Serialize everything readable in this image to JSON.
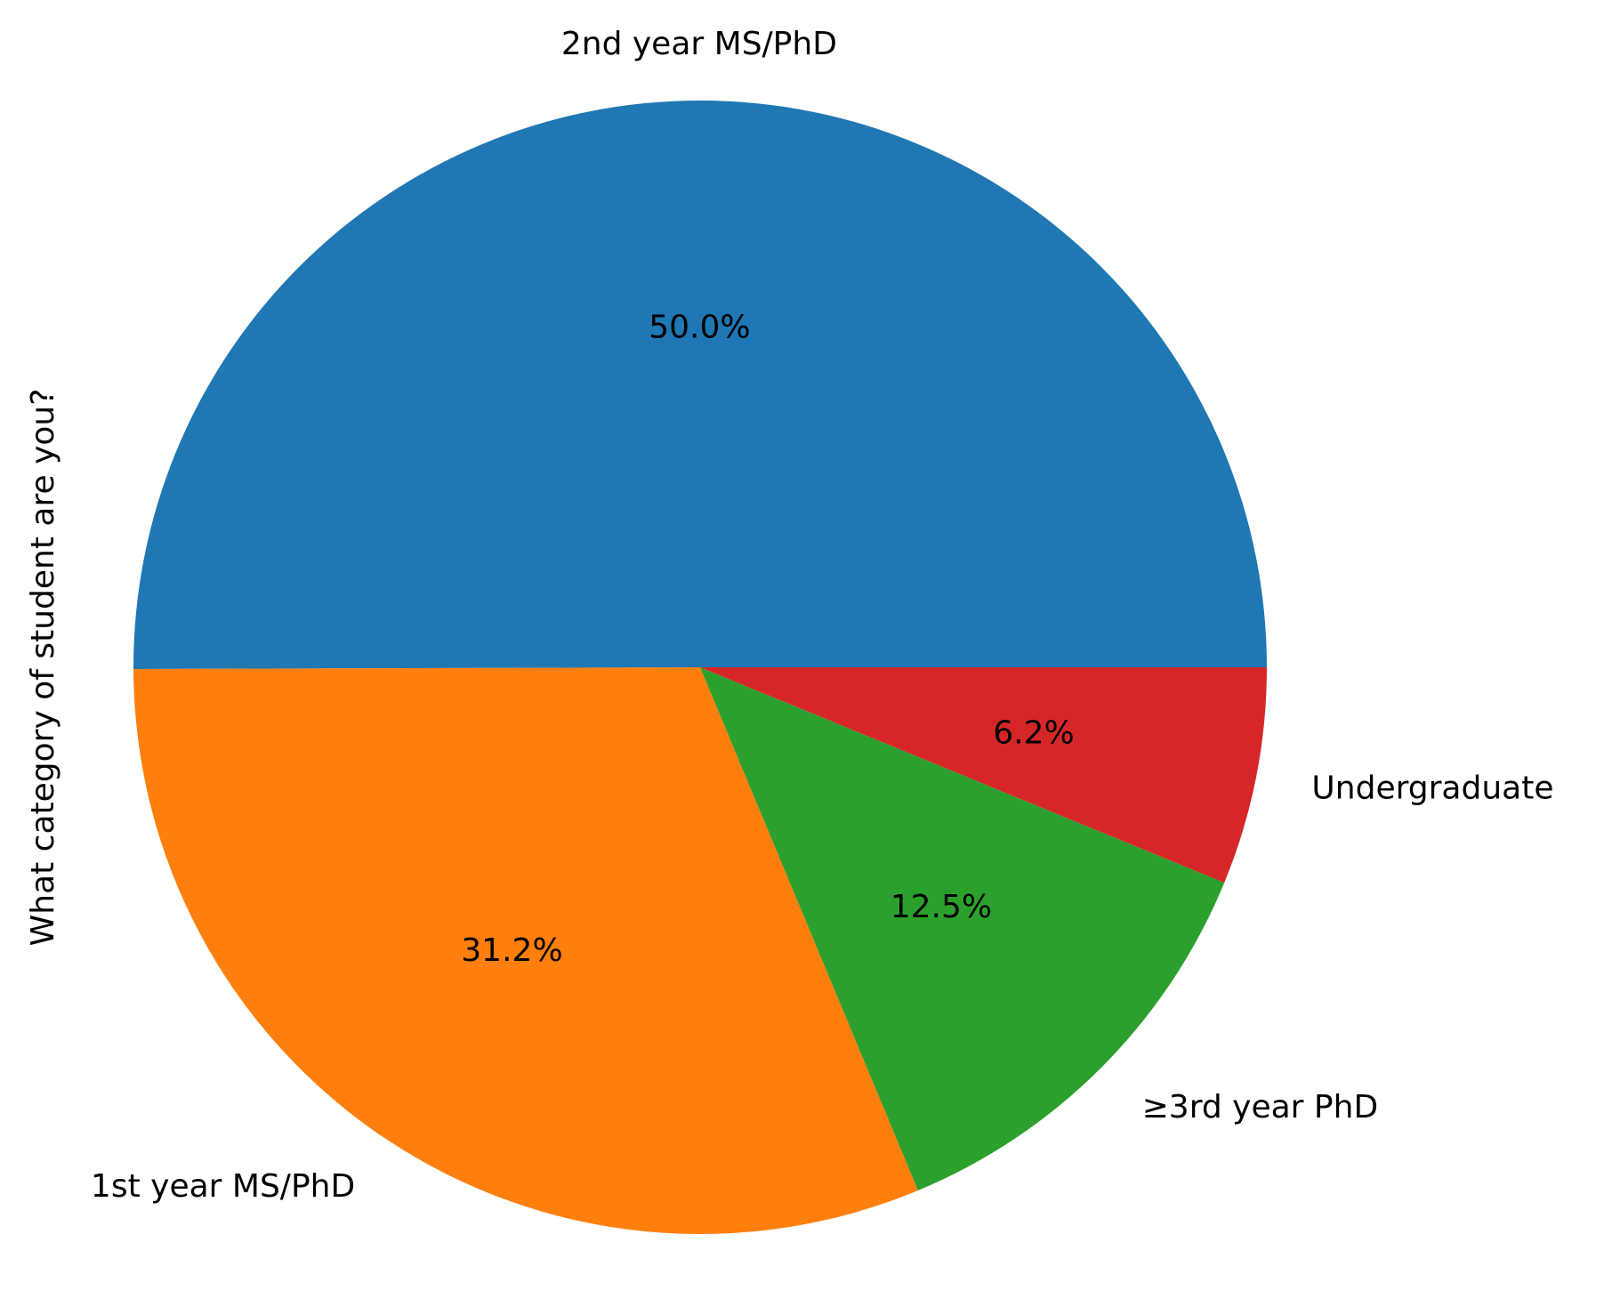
{
  "chart_data": {
    "type": "pie",
    "ylabel": "What category of student are you?",
    "slices": [
      {
        "label": "2nd year MS/PhD",
        "value": 50.0,
        "pct_label": "50.0%",
        "color": "#1f77b4"
      },
      {
        "label": "1st year MS/PhD",
        "value": 31.2,
        "pct_label": "31.2%",
        "color": "#ff7f0e"
      },
      {
        "label": "≥3rd year PhD",
        "value": 12.5,
        "pct_label": "12.5%",
        "color": "#2ca02c"
      },
      {
        "label": "Undergraduate",
        "value": 6.2,
        "pct_label": "6.2%",
        "color": "#d62728"
      }
    ],
    "start_angle_deg": 0,
    "direction": "counterclockwise"
  }
}
